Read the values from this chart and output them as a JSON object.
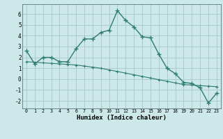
{
  "xlabel": "Humidex (Indice chaleur)",
  "background_color": "#cce8e8",
  "grid_color": "#aacccc",
  "line_color": "#2e7d6e",
  "x_data": [
    0,
    1,
    2,
    3,
    4,
    5,
    6,
    7,
    8,
    9,
    10,
    11,
    12,
    13,
    14,
    15,
    16,
    17,
    18,
    19,
    20,
    21,
    22,
    23
  ],
  "y_curve1": [
    2.6,
    1.4,
    2.0,
    2.0,
    1.6,
    1.6,
    2.8,
    3.7,
    3.7,
    4.3,
    4.5,
    6.3,
    5.4,
    4.8,
    3.9,
    3.8,
    2.3,
    1.0,
    0.5,
    -0.3,
    -0.4,
    -0.8,
    -2.2,
    -1.3
  ],
  "y_line2": [
    1.6,
    1.55,
    1.5,
    1.45,
    1.4,
    1.35,
    1.3,
    1.2,
    1.1,
    1.0,
    0.85,
    0.7,
    0.55,
    0.4,
    0.25,
    0.1,
    -0.05,
    -0.2,
    -0.35,
    -0.5,
    -0.55,
    -0.6,
    -0.65,
    -0.7
  ],
  "xlim": [
    -0.5,
    23.5
  ],
  "ylim": [
    -2.7,
    6.9
  ],
  "yticks": [
    -2,
    -1,
    0,
    1,
    2,
    3,
    4,
    5,
    6
  ],
  "xticks": [
    0,
    1,
    2,
    3,
    4,
    5,
    6,
    7,
    8,
    9,
    10,
    11,
    12,
    13,
    14,
    15,
    16,
    17,
    18,
    19,
    20,
    21,
    22,
    23
  ]
}
